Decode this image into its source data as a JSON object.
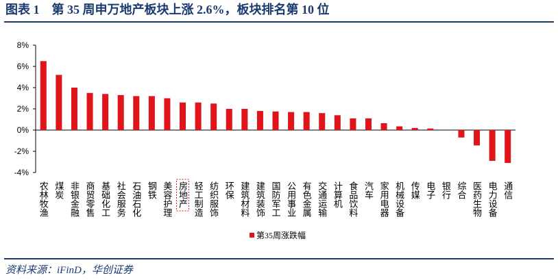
{
  "chart_data": {
    "type": "bar",
    "title": "图表 1　第 35 周申万地产板块上涨 2.6%，板块排名第 10 位",
    "source": "资料来源：iFinD，华创证券",
    "categories": [
      "农林牧渔",
      "煤炭",
      "非银金融",
      "商贸零售",
      "基础化工",
      "社会服务",
      "石油石化",
      "钢铁",
      "美容护理",
      "房地产",
      "轻工制造",
      "纺织服饰",
      "环保",
      "建筑材料",
      "建筑装饰",
      "国防军工",
      "公用事业",
      "有色金属",
      "交通运输",
      "计算机",
      "食品饮料",
      "汽车",
      "家用电器",
      "机械设备",
      "传媒",
      "电子",
      "银行",
      "综合",
      "医药生物",
      "电力设备",
      "通信"
    ],
    "series": [
      {
        "name": "第35周涨跌幅",
        "color": "#e0151b",
        "values": [
          6.5,
          5.2,
          4.0,
          3.5,
          3.4,
          3.3,
          3.2,
          3.2,
          3.0,
          2.6,
          2.6,
          2.5,
          2.0,
          2.0,
          1.8,
          1.75,
          1.7,
          1.7,
          1.6,
          1.4,
          1.1,
          1.1,
          0.65,
          0.35,
          0.2,
          0.15,
          0,
          -0.7,
          -1.45,
          -2.9,
          -3.1
        ]
      }
    ],
    "highlight_category": "房地产",
    "ylim": [
      -4,
      8
    ],
    "yticks": [
      {
        "value": -4,
        "label": "-4%"
      },
      {
        "value": -2,
        "label": "-2%"
      },
      {
        "value": 0,
        "label": "0%"
      },
      {
        "value": 2,
        "label": "2%"
      },
      {
        "value": 4,
        "label": "4%"
      },
      {
        "value": 6,
        "label": "6%"
      },
      {
        "value": 8,
        "label": "8%"
      }
    ],
    "grid": false,
    "legend": "bottom"
  }
}
